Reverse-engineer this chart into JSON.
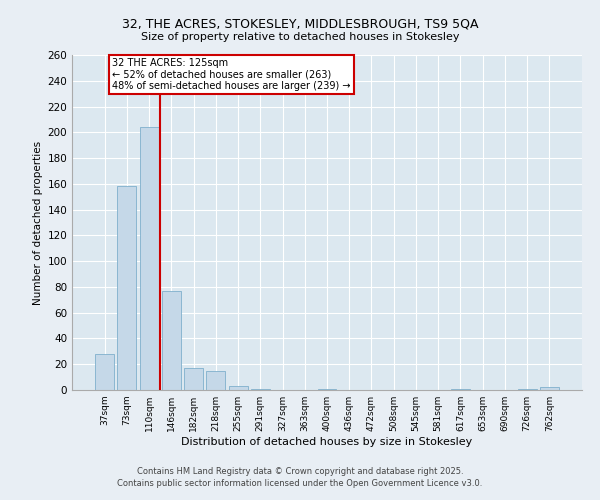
{
  "title_line1": "32, THE ACRES, STOKESLEY, MIDDLESBROUGH, TS9 5QA",
  "title_line2": "Size of property relative to detached houses in Stokesley",
  "xlabel": "Distribution of detached houses by size in Stokesley",
  "ylabel": "Number of detached properties",
  "categories": [
    "37sqm",
    "73sqm",
    "110sqm",
    "146sqm",
    "182sqm",
    "218sqm",
    "255sqm",
    "291sqm",
    "327sqm",
    "363sqm",
    "400sqm",
    "436sqm",
    "472sqm",
    "508sqm",
    "545sqm",
    "581sqm",
    "617sqm",
    "653sqm",
    "690sqm",
    "726sqm",
    "762sqm"
  ],
  "values": [
    28,
    158,
    204,
    77,
    17,
    15,
    3,
    1,
    0,
    0,
    1,
    0,
    0,
    0,
    0,
    0,
    1,
    0,
    0,
    1,
    2
  ],
  "bar_color": "#c5d8e8",
  "bar_edge_color": "#7fb0cc",
  "vline_x_index": 2.5,
  "vline_color": "#cc0000",
  "annotation_line1": "32 THE ACRES: 125sqm",
  "annotation_line2": "← 52% of detached houses are smaller (263)",
  "annotation_line3": "48% of semi-detached houses are larger (239) →",
  "annotation_box_color": "#cc0000",
  "ylim": [
    0,
    260
  ],
  "yticks": [
    0,
    20,
    40,
    60,
    80,
    100,
    120,
    140,
    160,
    180,
    200,
    220,
    240,
    260
  ],
  "footer_line1": "Contains HM Land Registry data © Crown copyright and database right 2025.",
  "footer_line2": "Contains public sector information licensed under the Open Government Licence v3.0.",
  "bg_color": "#e8eef4",
  "plot_bg_color": "#dce8f0"
}
